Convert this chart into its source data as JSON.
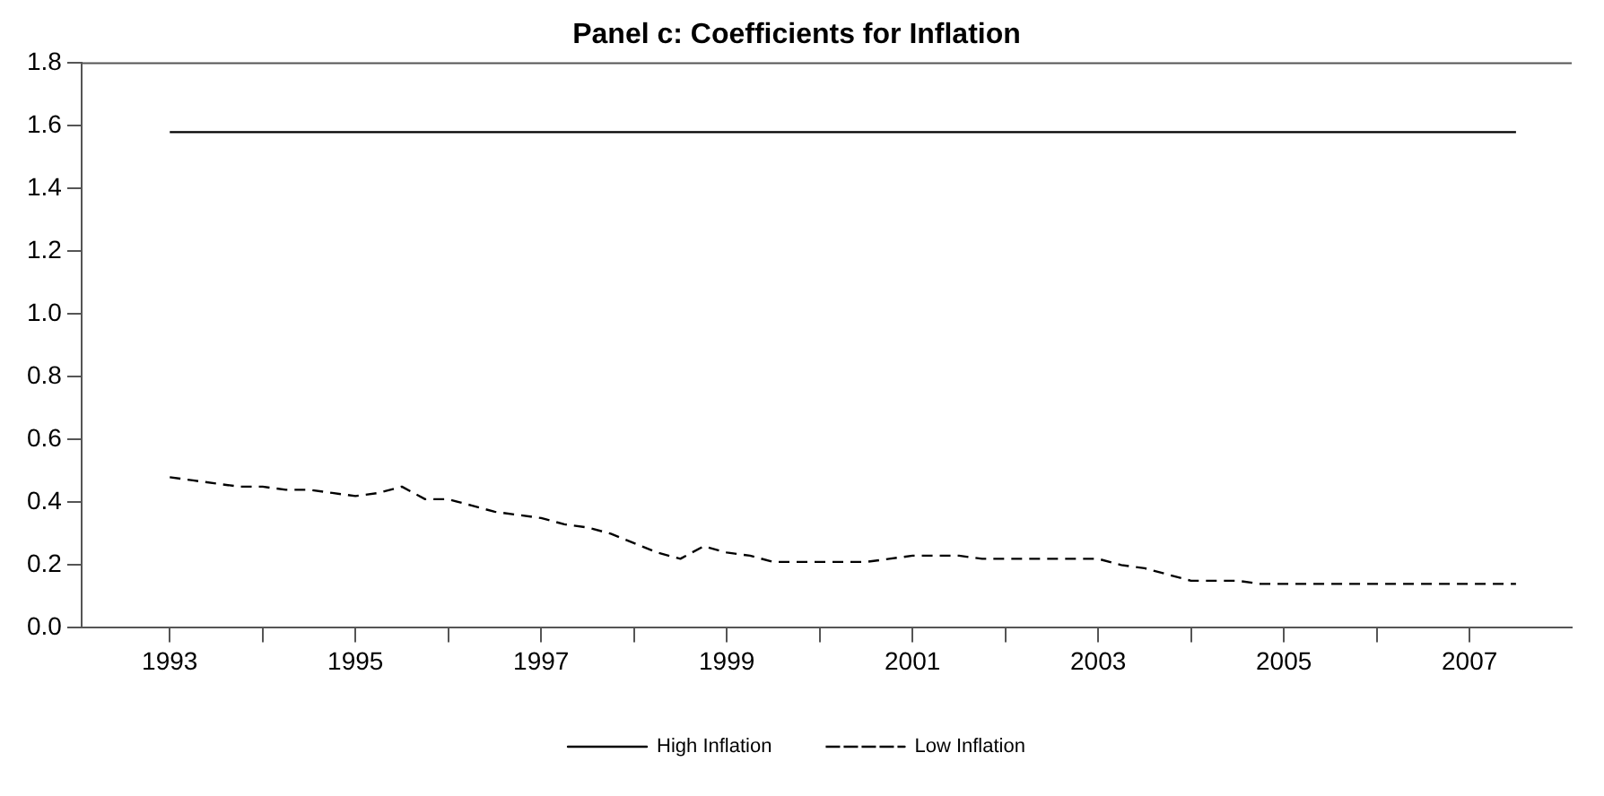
{
  "chart_data": {
    "type": "line",
    "title": "Panel c: Coefficients for Inflation",
    "x": [
      1993,
      1993.25,
      1993.5,
      1993.75,
      1994,
      1994.25,
      1994.5,
      1994.75,
      1995,
      1995.25,
      1995.5,
      1995.75,
      1996,
      1996.25,
      1996.5,
      1996.75,
      1997,
      1997.25,
      1997.5,
      1997.75,
      1998,
      1998.25,
      1998.5,
      1998.75,
      1999,
      1999.25,
      1999.5,
      1999.75,
      2000,
      2000.25,
      2000.5,
      2000.75,
      2001,
      2001.25,
      2001.5,
      2001.75,
      2002,
      2002.25,
      2002.5,
      2002.75,
      2003,
      2003.25,
      2003.5,
      2003.75,
      2004,
      2004.25,
      2004.5,
      2004.75,
      2005,
      2005.25,
      2005.5,
      2005.75,
      2006,
      2006.25,
      2006.5,
      2006.75,
      2007,
      2007.25,
      2007.5
    ],
    "series": [
      {
        "name": "High Inflation",
        "color": "#000000",
        "line_style": "solid",
        "values": [
          1.58,
          1.58,
          1.58,
          1.58,
          1.58,
          1.58,
          1.58,
          1.58,
          1.58,
          1.58,
          1.58,
          1.58,
          1.58,
          1.58,
          1.58,
          1.58,
          1.58,
          1.58,
          1.58,
          1.58,
          1.58,
          1.58,
          1.58,
          1.58,
          1.58,
          1.58,
          1.58,
          1.58,
          1.58,
          1.58,
          1.58,
          1.58,
          1.58,
          1.58,
          1.58,
          1.58,
          1.58,
          1.58,
          1.58,
          1.58,
          1.58,
          1.58,
          1.58,
          1.58,
          1.58,
          1.58,
          1.58,
          1.58,
          1.58,
          1.58,
          1.58,
          1.58,
          1.58,
          1.58,
          1.58,
          1.58,
          1.58,
          1.58,
          1.58
        ]
      },
      {
        "name": "Low Inflation",
        "color": "#000000",
        "line_style": "dashed",
        "values": [
          0.48,
          0.47,
          0.46,
          0.45,
          0.45,
          0.44,
          0.44,
          0.43,
          0.42,
          0.43,
          0.45,
          0.41,
          0.41,
          0.39,
          0.37,
          0.36,
          0.35,
          0.33,
          0.32,
          0.3,
          0.27,
          0.24,
          0.22,
          0.26,
          0.24,
          0.23,
          0.21,
          0.21,
          0.21,
          0.21,
          0.21,
          0.22,
          0.23,
          0.23,
          0.23,
          0.22,
          0.22,
          0.22,
          0.22,
          0.22,
          0.22,
          0.2,
          0.19,
          0.17,
          0.15,
          0.15,
          0.15,
          0.14,
          0.14,
          0.14,
          0.14,
          0.14,
          0.14,
          0.14,
          0.14,
          0.14,
          0.14,
          0.14,
          0.14
        ]
      }
    ],
    "xlim": [
      1992.05,
      2008.1
    ],
    "xticks": [
      {
        "value": 1993,
        "label": "1993"
      },
      {
        "value": 1994,
        "label": null
      },
      {
        "value": 1995,
        "label": "1995"
      },
      {
        "value": 1996,
        "label": null
      },
      {
        "value": 1997,
        "label": "1997"
      },
      {
        "value": 1998,
        "label": null
      },
      {
        "value": 1999,
        "label": "1999"
      },
      {
        "value": 2000,
        "label": null
      },
      {
        "value": 2001,
        "label": "2001"
      },
      {
        "value": 2002,
        "label": null
      },
      {
        "value": 2003,
        "label": "2003"
      },
      {
        "value": 2004,
        "label": null
      },
      {
        "value": 2005,
        "label": "2005"
      },
      {
        "value": 2006,
        "label": null
      },
      {
        "value": 2007,
        "label": "2007"
      }
    ],
    "ylim": [
      0,
      1.8
    ],
    "yticks": [
      {
        "value": 0,
        "label": "0.0"
      },
      0.2,
      0.4,
      0.6,
      0.8,
      {
        "value": 1,
        "label": "1.0"
      },
      1.2,
      1.4,
      1.6,
      1.8
    ],
    "grid": false,
    "legend": "bottom",
    "marker": "none"
  }
}
